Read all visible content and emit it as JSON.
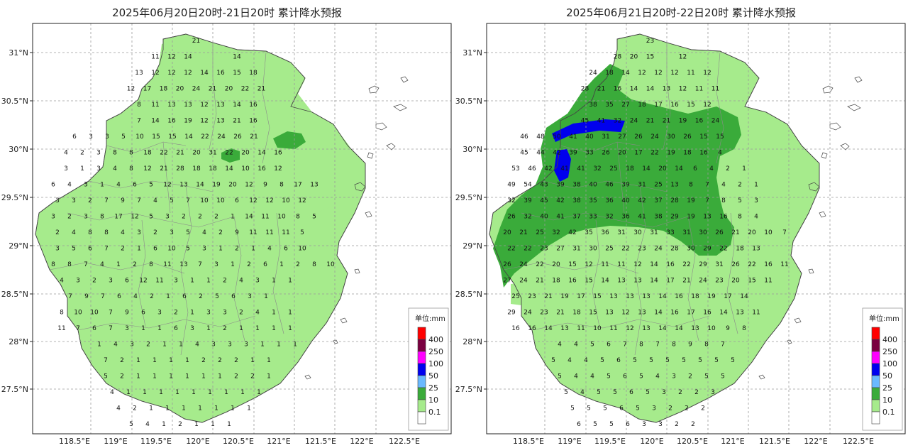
{
  "panels": [
    {
      "id": "left",
      "title": "2025年06月20日20时-21日20时 累计降水预报",
      "lat_labels": [
        "31°N",
        "30.5°N",
        "30°N",
        "29.5°N",
        "29°N",
        "28.5°N",
        "28°N",
        "27.5°N"
      ],
      "lon_labels": [
        "118.5°E",
        "119°E",
        "119.5°E",
        "120°E",
        "120.5°E",
        "121°E",
        "121.5°E",
        "122°E",
        "122.5°E"
      ],
      "legend": {
        "title": "单位:mm",
        "levels": [
          "400",
          "250",
          "100",
          "50",
          "25",
          "10",
          "0.1"
        ]
      },
      "values": [
        [
          "21"
        ],
        [
          "11",
          "12",
          "14",
          "",
          "",
          "14"
        ],
        [
          "13",
          "12",
          "12",
          "12",
          "14",
          "16",
          "15",
          "18"
        ],
        [
          "12",
          "17",
          "18",
          "20",
          "24",
          "21",
          "20",
          "22",
          "21"
        ],
        [
          "8",
          "11",
          "13",
          "13",
          "12",
          "13",
          "14",
          "16"
        ],
        [
          "7",
          "14",
          "16",
          "19",
          "12",
          "13",
          "21",
          "16"
        ],
        [
          "6",
          "3",
          "3",
          "5",
          "10",
          "15",
          "15",
          "14",
          "22",
          "24",
          "26",
          "21"
        ],
        [
          "4",
          "2",
          "3",
          "8",
          "8",
          "18",
          "22",
          "21",
          "20",
          "31",
          "22",
          "20",
          "14",
          "16"
        ],
        [
          "3",
          "1",
          "3",
          "4",
          "8",
          "12",
          "21",
          "28",
          "18",
          "18",
          "14",
          "10",
          "16",
          "12"
        ],
        [
          "6",
          "4",
          "3",
          "1",
          "4",
          "6",
          "5",
          "12",
          "13",
          "14",
          "19",
          "20",
          "12",
          "9",
          "8",
          "17",
          "13"
        ],
        [
          "3",
          "3",
          "2",
          "7",
          "9",
          "7",
          "4",
          "5",
          "7",
          "10",
          "10",
          "6",
          "12",
          "12",
          "10",
          "12"
        ],
        [
          "3",
          "2",
          "3",
          "8",
          "17",
          "12",
          "5",
          "3",
          "2",
          "2",
          "2",
          "1",
          "14",
          "11",
          "10",
          "8",
          "5"
        ],
        [
          "2",
          "4",
          "8",
          "8",
          "4",
          "3",
          "2",
          "3",
          "5",
          "4",
          "2",
          "9",
          "11",
          "11",
          "11",
          "5"
        ],
        [
          "3",
          "5",
          "6",
          "7",
          "2",
          "1",
          "6",
          "10",
          "5",
          "3",
          "1",
          "2",
          "1",
          "4",
          "6",
          "10"
        ],
        [
          "8",
          "8",
          "7",
          "4",
          "1",
          "2",
          "8",
          "11",
          "13",
          "7",
          "3",
          "1",
          "2",
          "6",
          "1",
          "2",
          "8",
          "10"
        ],
        [
          "4",
          "3",
          "2",
          "3",
          "6",
          "12",
          "11",
          "3",
          "1",
          "1",
          "2",
          "4",
          "3",
          "1",
          "1"
        ],
        [
          "7",
          "9",
          "7",
          "6",
          "4",
          "2",
          "1",
          "6",
          "2",
          "5",
          "6",
          "3",
          "1"
        ],
        [
          "8",
          "10",
          "10",
          "7",
          "9",
          "6",
          "3",
          "2",
          "1",
          "3",
          "3",
          "2",
          "4",
          "1",
          "1"
        ],
        [
          "11",
          "7",
          "6",
          "7",
          "3",
          "1",
          "1",
          "6",
          "3",
          "1",
          "2",
          "1",
          "1",
          "1",
          "1"
        ],
        [
          "1",
          "4",
          "3",
          "2",
          "1",
          "1",
          "4",
          "3",
          "3",
          "3",
          "1",
          "1",
          "1"
        ],
        [
          "7",
          "2",
          "1",
          "1",
          "1",
          "1",
          "2",
          "2",
          "2",
          "1",
          "1"
        ],
        [
          "5",
          "2",
          "1",
          "1",
          "1",
          "1",
          "1",
          "1",
          "2",
          "2",
          "1"
        ],
        [
          "4",
          "1",
          "1",
          "1",
          "1",
          "1",
          "1",
          "1",
          "1",
          "1"
        ],
        [
          "4",
          "2",
          "1",
          "1",
          "1",
          "1",
          "1",
          "1",
          "1"
        ],
        [
          "5",
          "4",
          "1",
          "2",
          "1",
          "1",
          "1"
        ],
        [
          "1",
          "1",
          "1"
        ]
      ]
    },
    {
      "id": "right",
      "title": "2025年06月21日20时-22日20时 累计降水预报",
      "lat_labels": [
        "31°N",
        "30.5°N",
        "30°N",
        "29.5°N",
        "29°N",
        "28.5°N",
        "28°N",
        "27.5°N"
      ],
      "lon_labels": [
        "118.5°E",
        "119°E",
        "119.5°E",
        "120°E",
        "120.5°E",
        "121°E",
        "121.5°E",
        "122°E",
        "122.5°E"
      ],
      "legend": {
        "title": "单位:mm",
        "levels": [
          "400",
          "250",
          "100",
          "50",
          "25",
          "10",
          "0.1"
        ]
      },
      "values": [
        [
          "23"
        ],
        [
          "28",
          "20",
          "15",
          "",
          "12"
        ],
        [
          "24",
          "18",
          "14",
          "12",
          "12",
          "12",
          "11",
          "12"
        ],
        [
          "28",
          "21",
          "16",
          "14",
          "14",
          "13",
          "12",
          "11",
          "11"
        ],
        [
          "38",
          "35",
          "27",
          "18",
          "17",
          "16",
          "15",
          "12"
        ],
        [
          "45",
          "41",
          "32",
          "24",
          "21",
          "21",
          "19",
          "16",
          "24"
        ],
        [
          "46",
          "48",
          "50",
          "41",
          "40",
          "31",
          "27",
          "26",
          "24",
          "30",
          "26",
          "15",
          "15"
        ],
        [
          "45",
          "44",
          "42",
          "39",
          "33",
          "26",
          "20",
          "17",
          "22",
          "19",
          "18",
          "16",
          "4"
        ],
        [
          "53",
          "46",
          "42",
          "41",
          "41",
          "32",
          "25",
          "18",
          "14",
          "20",
          "14",
          "6",
          "4",
          "2",
          "1"
        ],
        [
          "49",
          "54",
          "43",
          "39",
          "38",
          "40",
          "46",
          "39",
          "31",
          "25",
          "13",
          "8",
          "7",
          "4",
          "2",
          "1"
        ],
        [
          "32",
          "39",
          "45",
          "42",
          "38",
          "35",
          "36",
          "40",
          "42",
          "37",
          "28",
          "19",
          "7",
          "8",
          "5",
          "3"
        ],
        [
          "26",
          "32",
          "40",
          "41",
          "37",
          "33",
          "32",
          "36",
          "41",
          "38",
          "29",
          "19",
          "13",
          "16",
          "8",
          "4"
        ],
        [
          "20",
          "21",
          "25",
          "32",
          "42",
          "35",
          "36",
          "31",
          "30",
          "31",
          "33",
          "31",
          "30",
          "26",
          "21",
          "20",
          "10",
          "7"
        ],
        [
          "22",
          "22",
          "23",
          "27",
          "31",
          "30",
          "25",
          "22",
          "23",
          "24",
          "28",
          "30",
          "29",
          "22",
          "18",
          "13"
        ],
        [
          "26",
          "24",
          "22",
          "20",
          "15",
          "12",
          "11",
          "11",
          "12",
          "14",
          "16",
          "22",
          "29",
          "31",
          "26",
          "22",
          "16",
          "11"
        ],
        [
          "27",
          "24",
          "21",
          "18",
          "16",
          "15",
          "14",
          "13",
          "13",
          "14",
          "17",
          "21",
          "24",
          "23",
          "20",
          "15",
          "11"
        ],
        [
          "25",
          "23",
          "21",
          "19",
          "17",
          "15",
          "13",
          "13",
          "13",
          "14",
          "16",
          "18",
          "19",
          "17",
          "14"
        ],
        [
          "29",
          "24",
          "23",
          "21",
          "18",
          "15",
          "13",
          "12",
          "13",
          "14",
          "16",
          "17",
          "16",
          "14",
          "13",
          "11"
        ],
        [
          "16",
          "16",
          "14",
          "13",
          "11",
          "10",
          "11",
          "12",
          "13",
          "14",
          "14",
          "13",
          "10",
          "9",
          "8"
        ],
        [
          "4",
          "4",
          "5",
          "6",
          "7",
          "8",
          "7",
          "8",
          "9",
          "8",
          "7"
        ],
        [
          "5",
          "4",
          "4",
          "5",
          "6",
          "5",
          "5",
          "5",
          "5",
          "5",
          "5",
          "5"
        ],
        [
          "5",
          "4",
          "4",
          "5",
          "6",
          "5",
          "4",
          "3",
          "2",
          "5",
          "5"
        ],
        [
          "5",
          "4",
          "5",
          "5",
          "6",
          "5",
          "3",
          "2",
          "2",
          "3"
        ],
        [
          "5",
          "5",
          "5",
          "6",
          "5",
          "3",
          "2",
          "2",
          "2"
        ],
        [
          "6",
          "5",
          "5",
          "6",
          "3",
          "3",
          "2",
          "2"
        ],
        [
          "8",
          "6",
          "7",
          "4",
          "2",
          "2"
        ],
        [
          "6"
        ]
      ]
    }
  ]
}
